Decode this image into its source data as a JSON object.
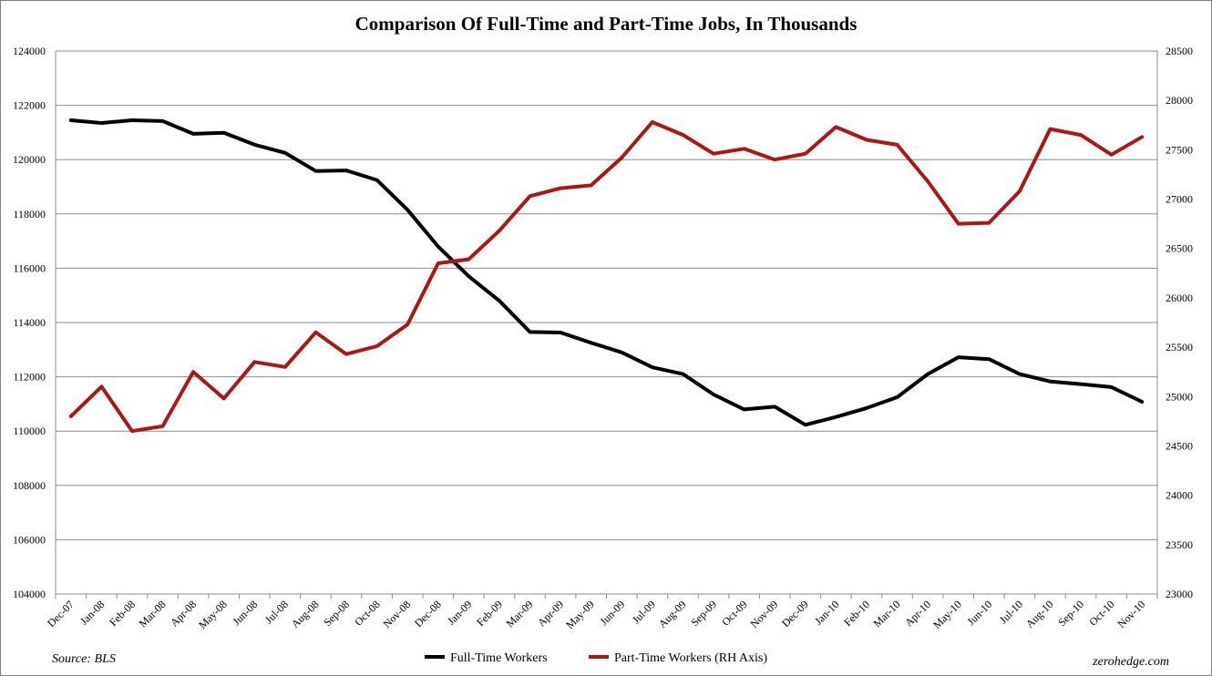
{
  "chart_data": {
    "type": "line",
    "title": "Comparison Of Full-Time and Part-Time Jobs, In Thousands",
    "categories": [
      "Dec-07",
      "Jan-08",
      "Feb-08",
      "Mar-08",
      "Apr-08",
      "May-08",
      "Jun-08",
      "Jul-08",
      "Aug-08",
      "Sep-08",
      "Oct-08",
      "Nov-08",
      "Dec-08",
      "Jan-09",
      "Feb-09",
      "Mar-09",
      "Apr-09",
      "May-09",
      "Jun-09",
      "Jul-09",
      "Aug-09",
      "Sep-09",
      "Oct-09",
      "Nov-09",
      "Dec-09",
      "Jan-10",
      "Feb-10",
      "Mar-10",
      "Apr-10",
      "May-10",
      "Jun-10",
      "Jul-10",
      "Aug-10",
      "Sep-10",
      "Oct-10",
      "Nov-10"
    ],
    "y_left": {
      "min": 104000,
      "max": 124000,
      "step": 2000,
      "ticks": [
        "104000",
        "106000",
        "108000",
        "110000",
        "112000",
        "114000",
        "116000",
        "118000",
        "120000",
        "122000",
        "124000"
      ]
    },
    "y_right": {
      "min": 23000,
      "max": 28500,
      "step": 500,
      "ticks": [
        "23000",
        "23500",
        "24000",
        "24500",
        "25000",
        "25500",
        "26000",
        "26500",
        "27000",
        "27500",
        "28000",
        "28500"
      ]
    },
    "grid": true,
    "legend_position": "bottom",
    "series": [
      {
        "name": "Full-Time Workers",
        "axis": "left",
        "color": "#000000",
        "values": [
          121450,
          121350,
          121450,
          121420,
          120950,
          120990,
          120550,
          120250,
          119580,
          119600,
          119250,
          118150,
          116800,
          115700,
          114800,
          113650,
          113630,
          113250,
          112900,
          112350,
          112100,
          111350,
          110800,
          110900,
          110230,
          110520,
          110850,
          111250,
          112100,
          112720,
          112650,
          112100,
          111830,
          111730,
          111620,
          111080
        ]
      },
      {
        "name": "Part-Time Workers (RH Axis)",
        "axis": "right",
        "color": "#b01515",
        "values": [
          24800,
          25100,
          24650,
          24700,
          25250,
          24980,
          25350,
          25300,
          25650,
          25430,
          25510,
          25730,
          26350,
          26390,
          26680,
          27030,
          27110,
          27140,
          27420,
          27780,
          27650,
          27460,
          27510,
          27400,
          27460,
          27730,
          27600,
          27550,
          27180,
          26750,
          26760,
          27080,
          27710,
          27650,
          27450,
          27630
        ]
      }
    ]
  },
  "footer": {
    "source": "Source: BLS",
    "credit": "zerohedge.com"
  }
}
